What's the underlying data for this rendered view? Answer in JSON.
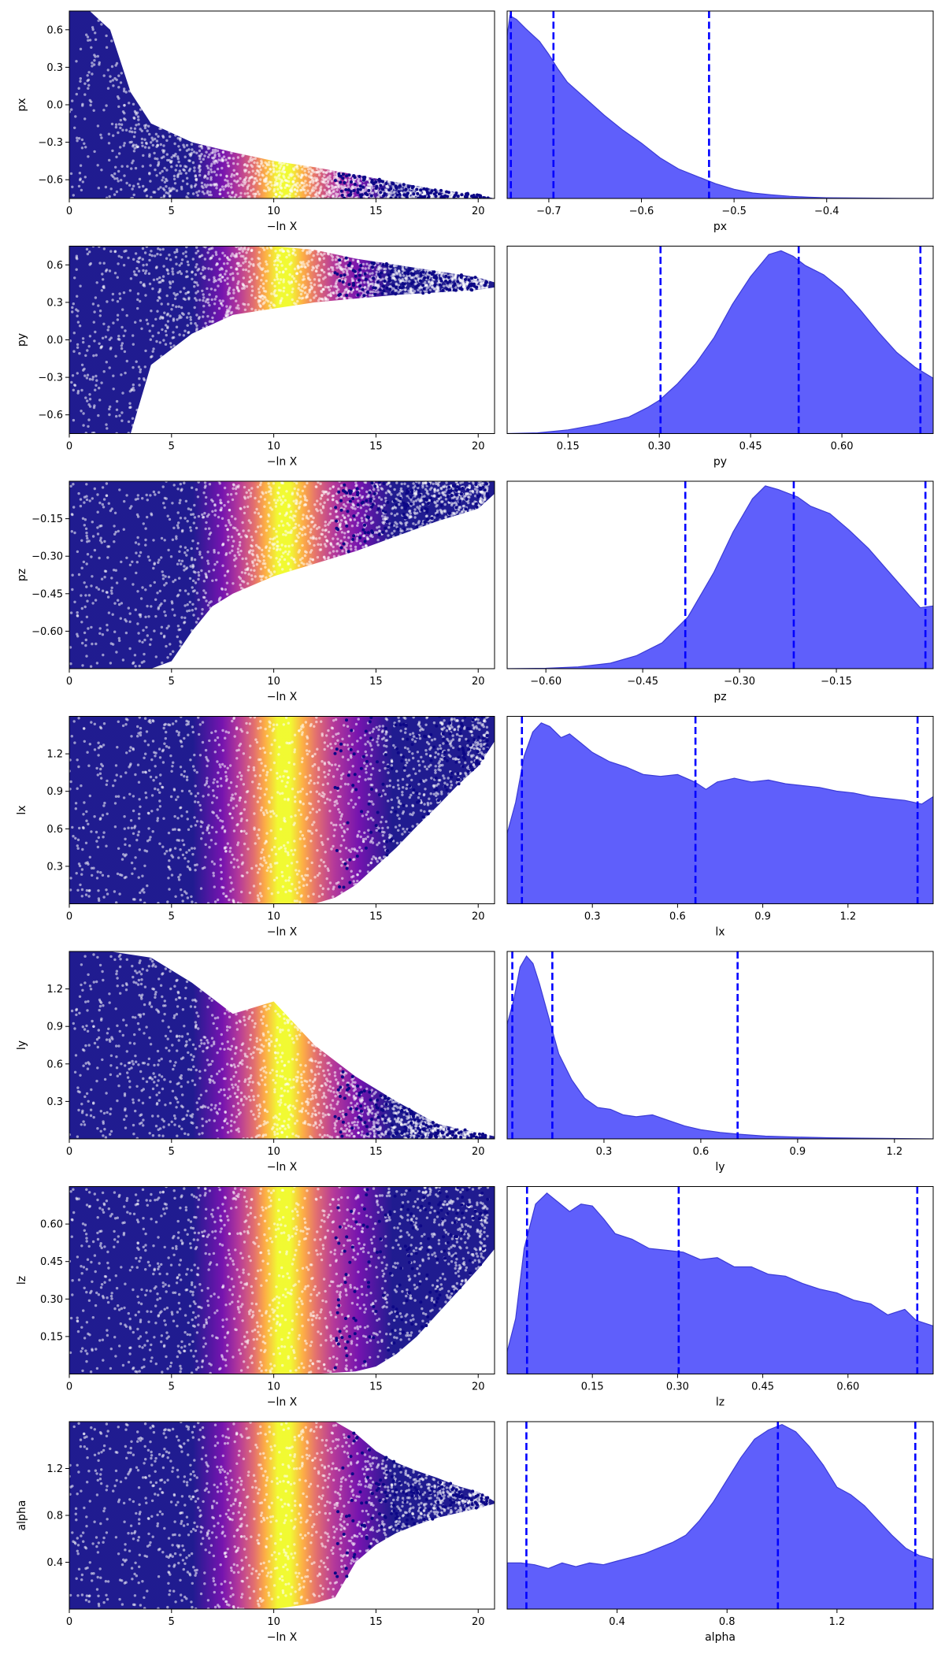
{
  "figure": {
    "background": "#ffffff"
  },
  "styles": {
    "density_fill": "#5f5ffb",
    "density_edge": "#3b3bd6",
    "quantile_line": "#0000ff",
    "colormap": [
      "#0d0887",
      "#6a00a8",
      "#b12a90",
      "#e16462",
      "#fca636",
      "#f0f921"
    ]
  },
  "chart_data": [
    {
      "type": "scatter",
      "name": "px-trace",
      "xlabel": "−ln X",
      "ylabel": "px",
      "xlim": [
        0,
        20.8
      ],
      "ylim": [
        -0.75,
        0.75
      ],
      "xticks": [
        0,
        5,
        10,
        15,
        20
      ],
      "xtick_labels": [
        "0",
        "5",
        "10",
        "15",
        "20"
      ],
      "yticks": [
        0.6,
        0.3,
        0.0,
        -0.3,
        -0.6
      ],
      "ytick_labels": [
        "0.6",
        "0.3",
        "0.0",
        "−0.3",
        "−0.6"
      ],
      "envelope": {
        "x": [
          0,
          1,
          2,
          3,
          4,
          6,
          8,
          10,
          12,
          14,
          16,
          18,
          20,
          20.8
        ],
        "lower": [
          -0.75,
          -0.75,
          -0.75,
          -0.75,
          -0.75,
          -0.75,
          -0.75,
          -0.75,
          -0.75,
          -0.75,
          -0.75,
          -0.75,
          -0.75,
          -0.75
        ],
        "upper": [
          0.75,
          0.75,
          0.6,
          0.1,
          -0.15,
          -0.3,
          -0.38,
          -0.45,
          -0.5,
          -0.56,
          -0.62,
          -0.68,
          -0.72,
          -0.75
        ]
      },
      "density_peak": 10.3
    },
    {
      "type": "area",
      "name": "px-posterior",
      "xlabel": "px",
      "ylabel": "",
      "xlim": [
        -0.745,
        -0.285
      ],
      "xticks": [
        -0.7,
        -0.6,
        -0.5,
        -0.4
      ],
      "xtick_labels": [
        "−0.7",
        "−0.6",
        "−0.5",
        "−0.4"
      ],
      "x": [
        -0.745,
        -0.742,
        -0.735,
        -0.725,
        -0.71,
        -0.7,
        -0.69,
        -0.68,
        -0.66,
        -0.64,
        -0.62,
        -0.6,
        -0.58,
        -0.56,
        -0.54,
        -0.52,
        -0.5,
        -0.48,
        -0.46,
        -0.44,
        -0.42,
        -0.4,
        -0.36,
        -0.32,
        -0.285
      ],
      "y": [
        0.88,
        0.99,
        0.97,
        0.92,
        0.85,
        0.78,
        0.7,
        0.63,
        0.54,
        0.45,
        0.37,
        0.3,
        0.22,
        0.16,
        0.12,
        0.08,
        0.05,
        0.03,
        0.02,
        0.012,
        0.007,
        0.004,
        0.002,
        0.001,
        0.0
      ],
      "quantiles": [
        -0.741,
        -0.695,
        -0.527
      ]
    },
    {
      "type": "scatter",
      "name": "py-trace",
      "xlabel": "−ln X",
      "ylabel": "py",
      "xlim": [
        0,
        20.8
      ],
      "ylim": [
        -0.75,
        0.75
      ],
      "xticks": [
        0,
        5,
        10,
        15,
        20
      ],
      "xtick_labels": [
        "0",
        "5",
        "10",
        "15",
        "20"
      ],
      "yticks": [
        0.6,
        0.3,
        0.0,
        -0.3,
        -0.6
      ],
      "ytick_labels": [
        "0.6",
        "0.3",
        "0.0",
        "−0.3",
        "−0.6"
      ],
      "envelope": {
        "x": [
          0,
          1,
          2,
          3,
          4,
          6,
          8,
          10,
          12,
          14,
          16,
          18,
          20,
          20.8
        ],
        "lower": [
          -0.75,
          -0.75,
          -0.75,
          -0.75,
          -0.2,
          0.05,
          0.2,
          0.25,
          0.3,
          0.33,
          0.36,
          0.38,
          0.4,
          0.42
        ],
        "upper": [
          0.75,
          0.75,
          0.75,
          0.75,
          0.75,
          0.75,
          0.75,
          0.75,
          0.72,
          0.65,
          0.6,
          0.55,
          0.5,
          0.46
        ]
      },
      "density_peak": 10.3
    },
    {
      "type": "area",
      "name": "py-posterior",
      "xlabel": "py",
      "ylabel": "",
      "xlim": [
        0.05,
        0.75
      ],
      "xticks": [
        0.15,
        0.3,
        0.45,
        0.6
      ],
      "xtick_labels": [
        "0.15",
        "0.30",
        "0.45",
        "0.60"
      ],
      "x": [
        0.05,
        0.1,
        0.15,
        0.2,
        0.25,
        0.28,
        0.3,
        0.33,
        0.36,
        0.39,
        0.42,
        0.45,
        0.48,
        0.5,
        0.52,
        0.54,
        0.57,
        0.6,
        0.63,
        0.66,
        0.69,
        0.72,
        0.75
      ],
      "y": [
        0.0,
        0.004,
        0.02,
        0.05,
        0.09,
        0.14,
        0.18,
        0.27,
        0.38,
        0.52,
        0.7,
        0.85,
        0.97,
        0.99,
        0.96,
        0.91,
        0.86,
        0.78,
        0.67,
        0.55,
        0.44,
        0.36,
        0.3
      ],
      "quantiles": [
        0.302,
        0.529,
        0.729
      ]
    },
    {
      "type": "scatter",
      "name": "pz-trace",
      "xlabel": "−ln X",
      "ylabel": "pz",
      "xlim": [
        0,
        20.8
      ],
      "ylim": [
        -0.75,
        0.0
      ],
      "xticks": [
        0,
        5,
        10,
        15,
        20
      ],
      "xtick_labels": [
        "0",
        "5",
        "10",
        "15",
        "20"
      ],
      "yticks": [
        -0.15,
        -0.3,
        -0.45,
        -0.6
      ],
      "ytick_labels": [
        "−0.15",
        "−0.30",
        "−0.45",
        "−0.60"
      ],
      "envelope": {
        "x": [
          0,
          2,
          4,
          5,
          6,
          7,
          8,
          10,
          12,
          14,
          16,
          18,
          20,
          20.8
        ],
        "lower": [
          -0.75,
          -0.75,
          -0.75,
          -0.72,
          -0.6,
          -0.5,
          -0.45,
          -0.38,
          -0.33,
          -0.28,
          -0.22,
          -0.16,
          -0.11,
          -0.05
        ],
        "upper": [
          0,
          0,
          0,
          0,
          0,
          0,
          0,
          0,
          0,
          0,
          0,
          0,
          0,
          0
        ]
      },
      "density_peak": 10.3
    },
    {
      "type": "area",
      "name": "pz-posterior",
      "xlabel": "pz",
      "ylabel": "",
      "xlim": [
        -0.66,
        0.0
      ],
      "xticks": [
        -0.6,
        -0.45,
        -0.3,
        -0.15
      ],
      "xtick_labels": [
        "−0.60",
        "−0.45",
        "−0.30",
        "−0.15"
      ],
      "x": [
        -0.66,
        -0.6,
        -0.55,
        -0.5,
        -0.46,
        -0.42,
        -0.38,
        -0.34,
        -0.31,
        -0.28,
        -0.26,
        -0.24,
        -0.21,
        -0.19,
        -0.16,
        -0.13,
        -0.1,
        -0.07,
        -0.04,
        -0.02,
        0.0
      ],
      "y": [
        0.0,
        0.002,
        0.01,
        0.03,
        0.07,
        0.14,
        0.28,
        0.52,
        0.74,
        0.92,
        0.99,
        0.97,
        0.93,
        0.88,
        0.84,
        0.75,
        0.65,
        0.53,
        0.41,
        0.33,
        0.34
      ],
      "quantiles": [
        -0.384,
        -0.216,
        -0.012
      ]
    },
    {
      "type": "scatter",
      "name": "lx-trace",
      "xlabel": "−ln X",
      "ylabel": "lx",
      "xlim": [
        0,
        20.8
      ],
      "ylim": [
        0.0,
        1.5
      ],
      "xticks": [
        0,
        5,
        10,
        15,
        20
      ],
      "xtick_labels": [
        "0",
        "5",
        "10",
        "15",
        "20"
      ],
      "yticks": [
        1.2,
        0.9,
        0.6,
        0.3
      ],
      "ytick_labels": [
        "1.2",
        "0.9",
        "0.6",
        "0.3"
      ],
      "envelope": {
        "x": [
          0,
          4,
          8,
          10,
          12,
          13,
          14,
          15,
          16,
          17,
          18,
          19,
          20,
          20.8
        ],
        "lower": [
          0,
          0,
          0,
          0,
          0,
          0.05,
          0.15,
          0.3,
          0.45,
          0.62,
          0.78,
          0.95,
          1.1,
          1.3
        ],
        "upper": [
          1.5,
          1.5,
          1.5,
          1.5,
          1.5,
          1.5,
          1.5,
          1.5,
          1.5,
          1.5,
          1.5,
          1.5,
          1.5,
          1.5
        ]
      },
      "density_peak": 10.3
    },
    {
      "type": "area",
      "name": "lx-posterior",
      "xlabel": "lx",
      "ylabel": "",
      "xlim": [
        0.0,
        1.5
      ],
      "xticks": [
        0.3,
        0.6,
        0.9,
        1.2
      ],
      "xtick_labels": [
        "0.3",
        "0.6",
        "0.9",
        "1.2"
      ],
      "x": [
        0.0,
        0.03,
        0.06,
        0.09,
        0.12,
        0.15,
        0.19,
        0.22,
        0.26,
        0.3,
        0.36,
        0.42,
        0.48,
        0.54,
        0.6,
        0.66,
        0.7,
        0.74,
        0.8,
        0.86,
        0.92,
        0.98,
        1.04,
        1.1,
        1.16,
        1.22,
        1.28,
        1.34,
        1.4,
        1.46,
        1.5
      ],
      "y": [
        0.38,
        0.55,
        0.8,
        0.93,
        0.98,
        0.96,
        0.9,
        0.92,
        0.87,
        0.82,
        0.77,
        0.74,
        0.7,
        0.69,
        0.7,
        0.66,
        0.62,
        0.66,
        0.68,
        0.66,
        0.67,
        0.65,
        0.64,
        0.63,
        0.61,
        0.6,
        0.58,
        0.57,
        0.56,
        0.54,
        0.58
      ],
      "quantiles": [
        0.052,
        0.663,
        1.445
      ]
    },
    {
      "type": "scatter",
      "name": "ly-trace",
      "xlabel": "−ln X",
      "ylabel": "ly",
      "xlim": [
        0,
        20.8
      ],
      "ylim": [
        0.0,
        1.5
      ],
      "xticks": [
        0,
        5,
        10,
        15,
        20
      ],
      "xtick_labels": [
        "0",
        "5",
        "10",
        "15",
        "20"
      ],
      "yticks": [
        1.2,
        0.9,
        0.6,
        0.3
      ],
      "ytick_labels": [
        "1.2",
        "0.9",
        "0.6",
        "0.3"
      ],
      "envelope": {
        "x": [
          0,
          2,
          4,
          6,
          8,
          10,
          12,
          14,
          16,
          18,
          20,
          20.8
        ],
        "lower": [
          0,
          0,
          0,
          0,
          0,
          0,
          0,
          0,
          0,
          0,
          0,
          0
        ],
        "upper": [
          1.5,
          1.5,
          1.45,
          1.25,
          1.0,
          1.1,
          0.75,
          0.5,
          0.3,
          0.12,
          0.05,
          0.02
        ]
      },
      "density_peak": 10.3
    },
    {
      "type": "area",
      "name": "ly-posterior",
      "xlabel": "ly",
      "ylabel": "",
      "xlim": [
        0.0,
        1.32
      ],
      "xticks": [
        0.3,
        0.6,
        0.9,
        1.2
      ],
      "xtick_labels": [
        "0.3",
        "0.6",
        "0.9",
        "1.2"
      ],
      "x": [
        0.0,
        0.02,
        0.04,
        0.06,
        0.08,
        0.1,
        0.13,
        0.16,
        0.2,
        0.24,
        0.28,
        0.32,
        0.36,
        0.4,
        0.45,
        0.5,
        0.55,
        0.6,
        0.66,
        0.72,
        0.8,
        0.9,
        1.0,
        1.1,
        1.2,
        1.32
      ],
      "y": [
        0.62,
        0.75,
        0.93,
        0.99,
        0.95,
        0.84,
        0.65,
        0.46,
        0.32,
        0.22,
        0.17,
        0.16,
        0.13,
        0.12,
        0.13,
        0.1,
        0.07,
        0.05,
        0.035,
        0.025,
        0.015,
        0.01,
        0.006,
        0.004,
        0.002,
        0.0
      ],
      "quantiles": [
        0.016,
        0.14,
        0.714
      ]
    },
    {
      "type": "scatter",
      "name": "lz-trace",
      "xlabel": "−ln X",
      "ylabel": "lz",
      "xlim": [
        0,
        20.8
      ],
      "ylim": [
        0.0,
        0.75
      ],
      "xticks": [
        0,
        5,
        10,
        15,
        20
      ],
      "xtick_labels": [
        "0",
        "5",
        "10",
        "15",
        "20"
      ],
      "yticks": [
        0.6,
        0.45,
        0.3,
        0.15
      ],
      "ytick_labels": [
        "0.60",
        "0.45",
        "0.30",
        "0.15"
      ],
      "envelope": {
        "x": [
          0,
          4,
          8,
          10,
          12,
          14,
          15,
          16,
          17,
          18,
          19,
          20,
          20.8
        ],
        "lower": [
          0,
          0,
          0,
          0,
          0,
          0.01,
          0.03,
          0.08,
          0.15,
          0.24,
          0.33,
          0.42,
          0.5
        ],
        "upper": [
          0.75,
          0.75,
          0.75,
          0.75,
          0.75,
          0.75,
          0.75,
          0.75,
          0.75,
          0.75,
          0.75,
          0.75,
          0.75
        ]
      },
      "density_peak": 10.3
    },
    {
      "type": "area",
      "name": "lz-posterior",
      "xlabel": "lz",
      "ylabel": "",
      "xlim": [
        0.0,
        0.75
      ],
      "xticks": [
        0.15,
        0.3,
        0.45,
        0.6
      ],
      "xtick_labels": [
        "0.15",
        "0.30",
        "0.45",
        "0.60"
      ],
      "x": [
        0.0,
        0.015,
        0.03,
        0.05,
        0.07,
        0.09,
        0.11,
        0.13,
        0.15,
        0.17,
        0.19,
        0.22,
        0.25,
        0.28,
        0.31,
        0.34,
        0.37,
        0.4,
        0.43,
        0.46,
        0.49,
        0.52,
        0.55,
        0.58,
        0.61,
        0.64,
        0.67,
        0.7,
        0.72,
        0.75
      ],
      "y": [
        0.12,
        0.3,
        0.68,
        0.92,
        0.98,
        0.93,
        0.88,
        0.92,
        0.91,
        0.84,
        0.76,
        0.73,
        0.68,
        0.67,
        0.66,
        0.62,
        0.63,
        0.58,
        0.58,
        0.54,
        0.53,
        0.49,
        0.46,
        0.44,
        0.4,
        0.38,
        0.32,
        0.35,
        0.29,
        0.26
      ],
      "quantiles": [
        0.035,
        0.302,
        0.722
      ]
    },
    {
      "type": "scatter",
      "name": "alpha-trace",
      "xlabel": "−ln X",
      "ylabel": "alpha",
      "xlim": [
        0,
        20.8
      ],
      "ylim": [
        0.0,
        1.6
      ],
      "xticks": [
        0,
        5,
        10,
        15,
        20
      ],
      "xtick_labels": [
        "0",
        "5",
        "10",
        "15",
        "20"
      ],
      "yticks": [
        1.2,
        0.8,
        0.4
      ],
      "ytick_labels": [
        "1.2",
        "0.8",
        "0.4"
      ],
      "envelope": {
        "x": [
          0,
          4,
          8,
          10,
          12,
          13,
          14,
          15,
          16,
          17,
          18,
          19,
          20,
          20.8
        ],
        "lower": [
          0,
          0,
          0,
          0,
          0.05,
          0.1,
          0.4,
          0.55,
          0.65,
          0.72,
          0.78,
          0.82,
          0.86,
          0.9
        ],
        "upper": [
          1.6,
          1.6,
          1.6,
          1.6,
          1.6,
          1.6,
          1.5,
          1.35,
          1.25,
          1.18,
          1.12,
          1.05,
          1.0,
          0.92
        ]
      },
      "density_peak": 10.3
    },
    {
      "type": "area",
      "name": "alpha-posterior",
      "xlabel": "alpha",
      "ylabel": "",
      "xlim": [
        0.0,
        1.55
      ],
      "xticks": [
        0.4,
        0.8,
        1.2
      ],
      "xtick_labels": [
        "0.4",
        "0.8",
        "1.2"
      ],
      "x": [
        0.0,
        0.05,
        0.1,
        0.15,
        0.2,
        0.25,
        0.3,
        0.35,
        0.4,
        0.45,
        0.5,
        0.55,
        0.6,
        0.65,
        0.7,
        0.75,
        0.8,
        0.85,
        0.9,
        0.95,
        1.0,
        1.05,
        1.1,
        1.15,
        1.2,
        1.25,
        1.3,
        1.35,
        1.4,
        1.45,
        1.5,
        1.55
      ],
      "y": [
        0.25,
        0.25,
        0.24,
        0.22,
        0.25,
        0.23,
        0.25,
        0.24,
        0.26,
        0.28,
        0.3,
        0.33,
        0.36,
        0.4,
        0.48,
        0.58,
        0.7,
        0.82,
        0.92,
        0.97,
        1.0,
        0.96,
        0.88,
        0.78,
        0.66,
        0.62,
        0.56,
        0.48,
        0.4,
        0.33,
        0.29,
        0.27
      ],
      "quantiles": [
        0.07,
        0.985,
        1.485
      ]
    }
  ]
}
